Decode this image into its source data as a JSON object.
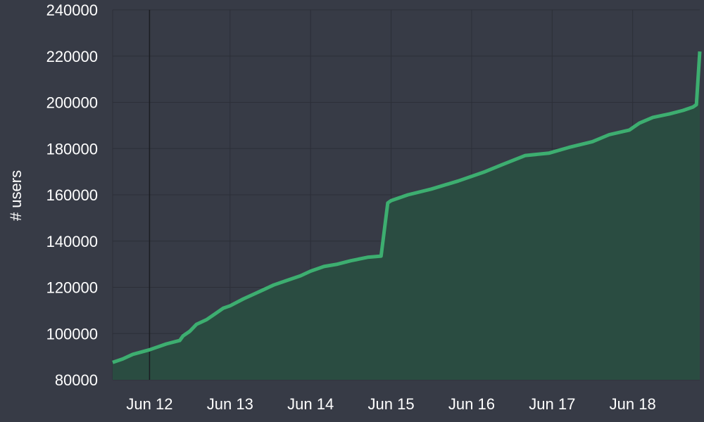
{
  "colors": {
    "background": "#373b46",
    "grid": "#2c2f38",
    "line": "#3dae70",
    "fill": "#2a4c41",
    "marker": "#1b1d22",
    "text": "#ffffff"
  },
  "chart_data": {
    "type": "area",
    "title": "",
    "xlabel": "",
    "ylabel": "# users",
    "ylim": [
      80000,
      240000
    ],
    "xlim": [
      "2023-06-11 13:00",
      "2023-06-18 20:00"
    ],
    "y_ticks": [
      80000,
      100000,
      120000,
      140000,
      160000,
      180000,
      200000,
      220000,
      240000
    ],
    "y_tick_labels": [
      "80000",
      "100000",
      "120000",
      "140000",
      "160000",
      "180000",
      "200000",
      "220000",
      "240000"
    ],
    "x_ticks": [
      "2023-06-12 00:00",
      "2023-06-13 00:00",
      "2023-06-14 00:00",
      "2023-06-15 00:00",
      "2023-06-16 00:00",
      "2023-06-17 00:00",
      "2023-06-18 00:00"
    ],
    "x_tick_labels": [
      "Jun 12",
      "Jun 13",
      "Jun 14",
      "Jun 15",
      "Jun 16",
      "Jun 17",
      "Jun 18"
    ],
    "vertical_marker": "2023-06-12 00:00",
    "grid": true,
    "legend": "none",
    "series": [
      {
        "x": [
          "2023-06-11 13:00",
          "2023-06-11 16:00",
          "2023-06-11 19:00",
          "2023-06-12 00:00",
          "2023-06-12 05:00",
          "2023-06-12 09:00",
          "2023-06-12 10:00",
          "2023-06-12 12:00",
          "2023-06-12 14:00",
          "2023-06-12 17:00",
          "2023-06-12 19:00",
          "2023-06-12 22:00",
          "2023-06-13 00:00",
          "2023-06-13 04:00",
          "2023-06-13 07:00",
          "2023-06-13 10:00",
          "2023-06-13 13:00",
          "2023-06-13 17:00",
          "2023-06-13 21:00",
          "2023-06-14 00:00",
          "2023-06-14 04:00",
          "2023-06-14 08:00",
          "2023-06-14 12:00",
          "2023-06-14 17:00",
          "2023-06-14 21:00",
          "2023-06-14 23:00",
          "2023-06-15 00:00",
          "2023-06-15 05:00",
          "2023-06-15 12:00",
          "2023-06-15 20:00",
          "2023-06-16 04:00",
          "2023-06-16 09:00",
          "2023-06-16 16:00",
          "2023-06-16 23:00",
          "2023-06-17 05:00",
          "2023-06-17 12:00",
          "2023-06-17 17:00",
          "2023-06-17 23:00",
          "2023-06-18 02:00",
          "2023-06-18 06:00",
          "2023-06-18 11:00",
          "2023-06-18 15:00",
          "2023-06-18 18:00",
          "2023-06-18 19:00",
          "2023-06-18 20:00"
        ],
        "values": [
          87500,
          89000,
          91000,
          93000,
          95500,
          97000,
          99000,
          101000,
          104000,
          106000,
          108000,
          111000,
          112000,
          115000,
          117000,
          119000,
          121000,
          123000,
          125000,
          127000,
          129000,
          130000,
          131500,
          133000,
          133500,
          156500,
          157500,
          160000,
          162500,
          166000,
          170000,
          173000,
          177000,
          178000,
          180500,
          183000,
          186000,
          188000,
          191000,
          193500,
          195000,
          196500,
          198000,
          199000,
          222000
        ]
      }
    ]
  }
}
